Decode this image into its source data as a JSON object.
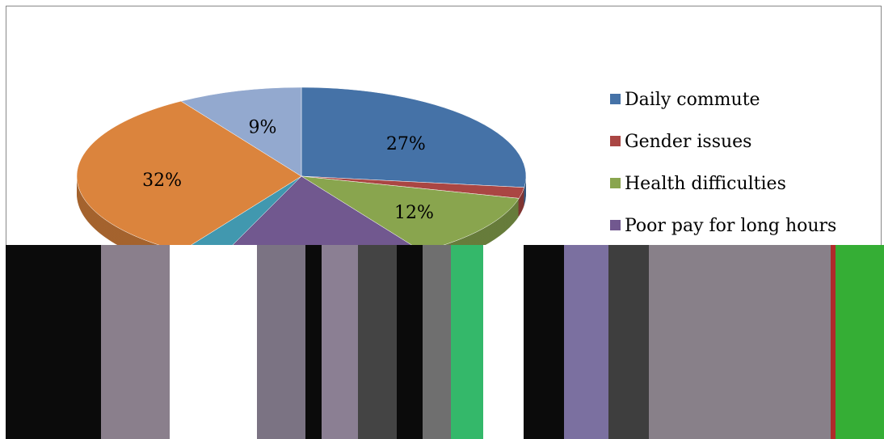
{
  "chart_data": {
    "type": "pie",
    "categories": [
      "Daily commute",
      "Gender issues",
      "Health difficulties",
      "Poor pay for long hours",
      null,
      null,
      null
    ],
    "values": [
      27,
      2,
      12,
      15,
      3,
      32,
      9
    ],
    "value_labels": [
      "27%",
      null,
      "12%",
      null,
      null,
      "32%",
      "9%"
    ],
    "colors": [
      "#4572a7",
      "#aa4643",
      "#89a54e",
      "#71588f",
      "#4198af",
      "#db843d",
      "#93a9cf"
    ],
    "legend": "right"
  }
}
